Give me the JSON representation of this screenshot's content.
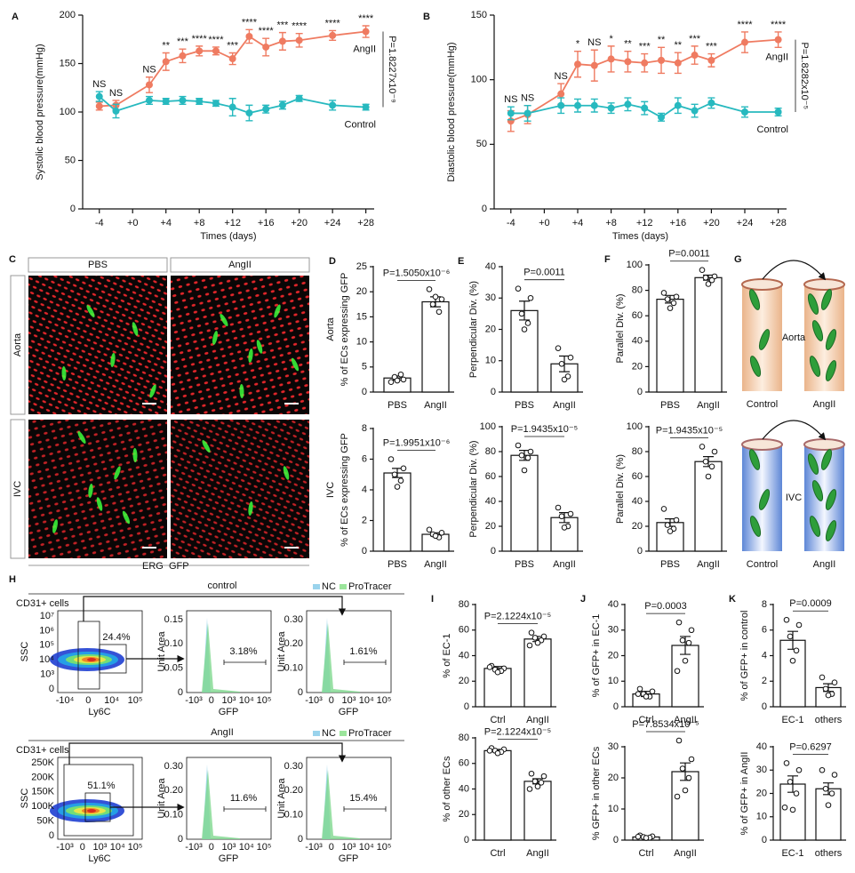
{
  "chart_data": [
    {
      "type": "line",
      "panel": "A",
      "ylabel": "Systolic blood pressure(mmHg)",
      "xlabel": "Times (days)",
      "x": [
        -4,
        -2,
        2,
        4,
        6,
        8,
        10,
        12,
        14,
        16,
        18,
        20,
        24,
        28
      ],
      "xlim": [
        -6,
        29
      ],
      "xticks": [
        -4,
        {
          "value": 0,
          "label": "+0"
        },
        {
          "value": 4,
          "label": "+4"
        },
        {
          "value": 8,
          "label": "+8"
        },
        {
          "value": 12,
          "label": "+12"
        },
        {
          "value": 16,
          "label": "+16"
        },
        {
          "value": 20,
          "label": "+20"
        },
        {
          "value": 24,
          "label": "+24"
        },
        {
          "value": 28,
          "label": "+28"
        }
      ],
      "ylim": [
        0,
        200
      ],
      "yticks": [
        0,
        50,
        100,
        150,
        200
      ],
      "series": [
        {
          "name": "AngII",
          "color": "#ef7b61",
          "values": [
            106,
            107,
            128,
            152,
            158,
            163,
            163,
            155,
            178,
            167,
            173,
            174,
            179,
            183
          ],
          "errors": [
            4,
            5,
            8,
            9,
            7,
            5,
            4,
            6,
            7,
            9,
            9,
            7,
            5,
            6
          ]
        },
        {
          "name": "Control",
          "color": "#27b9bf",
          "values": [
            116,
            101,
            112,
            111,
            112,
            111,
            109,
            105,
            99,
            103,
            107,
            114,
            107,
            105
          ],
          "errors": [
            5,
            7,
            4,
            3,
            4,
            3,
            3,
            9,
            8,
            4,
            4,
            3,
            5,
            3
          ]
        }
      ],
      "significance": [
        "NS",
        "NS",
        "NS",
        "**",
        "***",
        "****",
        "****",
        "***",
        "****",
        "****",
        "***",
        "****",
        "****",
        "****"
      ],
      "p_value": "P=1.8227x10⁻⁹"
    },
    {
      "type": "line",
      "panel": "B",
      "ylabel": "Diastolic blood pressure(mmHg)",
      "xlabel": "Times (days)",
      "x": [
        -4,
        -2,
        2,
        4,
        6,
        8,
        10,
        12,
        14,
        16,
        18,
        20,
        24,
        28
      ],
      "xlim": [
        -6,
        29
      ],
      "xticks": [
        -4,
        {
          "value": 0,
          "label": "+0"
        },
        {
          "value": 4,
          "label": "+4"
        },
        {
          "value": 8,
          "label": "+8"
        },
        {
          "value": 12,
          "label": "+12"
        },
        {
          "value": 16,
          "label": "+16"
        },
        {
          "value": 20,
          "label": "+20"
        },
        {
          "value": 24,
          "label": "+24"
        },
        {
          "value": 28,
          "label": "+28"
        }
      ],
      "ylim": [
        0,
        150
      ],
      "yticks": [
        0,
        50,
        100,
        150
      ],
      "series": [
        {
          "name": "AngII",
          "color": "#ef7b61",
          "values": [
            68,
            73,
            89,
            112,
            111,
            116,
            114,
            113,
            115,
            113,
            119,
            115,
            129,
            131
          ],
          "errors": [
            8,
            7,
            8,
            10,
            12,
            10,
            8,
            7,
            10,
            8,
            7,
            5,
            8,
            6
          ]
        },
        {
          "name": "Control",
          "color": "#27b9bf",
          "values": [
            74,
            74,
            80,
            80,
            80,
            78,
            81,
            78,
            71,
            80,
            76,
            82,
            75,
            75
          ],
          "errors": [
            5,
            6,
            6,
            5,
            5,
            4,
            5,
            5,
            3,
            6,
            5,
            4,
            4,
            3
          ]
        }
      ],
      "significance": [
        "NS",
        "NS",
        "NS",
        "*",
        "NS",
        "*",
        "**",
        "***",
        "**",
        "**",
        "***",
        "***",
        "****",
        "****"
      ],
      "p_value": "P=1.8282x10⁻⁵"
    },
    {
      "type": "bar",
      "panel": "D",
      "row_label": "Aorta",
      "ylabel": "% of ECs expressing GFP",
      "color": "#ffffff",
      "categories": [
        "PBS",
        "AngII"
      ],
      "values": [
        2.8,
        18
      ],
      "errors": [
        0.4,
        1
      ],
      "points": [
        [
          2.0,
          2.5,
          3.0,
          3.5,
          2.3
        ],
        [
          20.5,
          18.5,
          17.5,
          16,
          19
        ]
      ],
      "ylim": [
        0,
        25
      ],
      "yticks": [
        0,
        5,
        10,
        15,
        20,
        25
      ],
      "p_value": "P=1.5050x10⁻⁶"
    },
    {
      "type": "bar",
      "row_label": "IVC",
      "ylabel": "% of ECs expressing GFP",
      "color": "#ffffff",
      "categories": [
        "PBS",
        "AngII"
      ],
      "values": [
        5.1,
        1.1
      ],
      "errors": [
        0.3,
        0.1
      ],
      "points": [
        [
          6.0,
          5.4,
          5.0,
          4.6,
          4.2
        ],
        [
          1.4,
          1.2,
          1.1,
          0.9,
          1.0
        ]
      ],
      "ylim": [
        0,
        8
      ],
      "yticks": [
        0,
        2,
        4,
        6,
        8
      ],
      "p_value": "P=1.9951x10⁻⁶"
    },
    {
      "type": "bar",
      "panel": "E",
      "ylabel": "Perpendicular Div. (%)",
      "color": "#ffffff",
      "categories": [
        "PBS",
        "AngII"
      ],
      "values": [
        26,
        9
      ],
      "errors": [
        3,
        2.5
      ],
      "points": [
        [
          33,
          30,
          25,
          22,
          20
        ],
        [
          14,
          11,
          9,
          5,
          4
        ]
      ],
      "ylim": [
        0,
        40
      ],
      "yticks": [
        0,
        10,
        20,
        30,
        40
      ],
      "p_value": "P=0.0011"
    },
    {
      "type": "bar",
      "ylabel": "Perpendicular Div. (%)",
      "color": "#ffffff",
      "categories": [
        "PBS",
        "AngII"
      ],
      "values": [
        77,
        27
      ],
      "errors": [
        4,
        4
      ],
      "points": [
        [
          85,
          80,
          77,
          75,
          65
        ],
        [
          35,
          30,
          28,
          20,
          19
        ]
      ],
      "ylim": [
        0,
        100
      ],
      "yticks": [
        0,
        20,
        40,
        60,
        80,
        100
      ],
      "p_value": "P=1.9435x10⁻⁵"
    },
    {
      "type": "bar",
      "panel": "F",
      "ylabel": "Parallel Div. (%)",
      "color": "#ffffff",
      "categories": [
        "PBS",
        "AngII"
      ],
      "values": [
        73,
        90
      ],
      "errors": [
        3,
        2
      ],
      "points": [
        [
          78,
          75,
          73,
          70,
          66
        ],
        [
          96,
          91,
          90,
          88,
          85
        ]
      ],
      "ylim": [
        0,
        100
      ],
      "yticks": [
        0,
        20,
        40,
        60,
        80,
        100
      ],
      "p_value": "P=0.0011"
    },
    {
      "type": "bar",
      "ylabel": "Parallel Div. (%)",
      "color": "#ffffff",
      "categories": [
        "PBS",
        "AngII"
      ],
      "values": [
        23,
        72
      ],
      "errors": [
        3,
        4
      ],
      "points": [
        [
          34,
          25,
          21,
          18,
          16
        ],
        [
          84,
          80,
          72,
          68,
          60
        ]
      ],
      "ylim": [
        0,
        100
      ],
      "yticks": [
        0,
        20,
        40,
        60,
        80,
        100
      ],
      "p_value": "P=1.9435x10⁻⁵"
    },
    {
      "type": "bar",
      "panel": "I",
      "ylabel": "% of EC-1",
      "color": "#ffffff",
      "categories": [
        "Ctrl",
        "AngII"
      ],
      "values": [
        30,
        53
      ],
      "errors": [
        1.5,
        2
      ],
      "points": [
        [
          32,
          30,
          29,
          28,
          27,
          31
        ],
        [
          58,
          55,
          54,
          52,
          50,
          48
        ]
      ],
      "ylim": [
        0,
        80
      ],
      "yticks": [
        0,
        20,
        40,
        60,
        80
      ],
      "p_value": "P=2.1224x10⁻⁵"
    },
    {
      "type": "bar",
      "ylabel": "% of other ECs",
      "color": "#ffffff",
      "categories": [
        "Ctrl",
        "AngII"
      ],
      "values": [
        70,
        46
      ],
      "errors": [
        1,
        2
      ],
      "points": [
        [
          72,
          71,
          70,
          69,
          68,
          70
        ],
        [
          52,
          50,
          46,
          45,
          42,
          40
        ]
      ],
      "ylim": [
        0,
        80
      ],
      "yticks": [
        0,
        20,
        40,
        60,
        80
      ],
      "p_value": "P=2.1224x10⁻⁵"
    },
    {
      "type": "bar",
      "panel": "J",
      "ylabel": "% of GFP+ in EC-1",
      "color": "#ffffff",
      "categories": [
        "Ctrl",
        "AngII"
      ],
      "values": [
        5,
        24
      ],
      "errors": [
        1,
        3.5
      ],
      "points": [
        [
          7,
          6,
          5,
          4,
          4,
          5
        ],
        [
          33,
          30,
          26,
          25,
          18,
          14
        ]
      ],
      "ylim": [
        0,
        40
      ],
      "yticks": [
        0,
        10,
        20,
        30,
        40
      ],
      "p_value": "P=0.0003"
    },
    {
      "type": "bar",
      "ylabel": "% GFP+ in other ECs",
      "color": "#ffffff",
      "categories": [
        "Ctrl",
        "AngII"
      ],
      "values": [
        1,
        22
      ],
      "errors": [
        0.2,
        2.8
      ],
      "points": [
        [
          1.5,
          1.2,
          1,
          0.8,
          0.7,
          1.1
        ],
        [
          32,
          26,
          23,
          20,
          16,
          14
        ]
      ],
      "ylim": [
        0,
        30
      ],
      "yticks": [
        0,
        10,
        20,
        30
      ],
      "p_value": "P=7.8534x10⁻⁵"
    },
    {
      "type": "bar",
      "panel": "K",
      "ylabel": "% of GFP+ in control",
      "color": "#ffffff",
      "categories": [
        "EC-1",
        "others"
      ],
      "values": [
        5.2,
        1.5
      ],
      "errors": [
        0.7,
        0.3
      ],
      "points": [
        [
          6.8,
          6.4,
          5.5,
          4.4,
          3.6
        ],
        [
          2.3,
          1.9,
          1.4,
          1.0,
          0.9
        ]
      ],
      "ylim": [
        0,
        8
      ],
      "yticks": [
        0,
        2,
        4,
        6,
        8
      ],
      "p_value": "P=0.0009"
    },
    {
      "type": "bar",
      "ylabel": "% of GFP+ in AngII",
      "color": "#ffffff",
      "categories": [
        "EC-1",
        "others"
      ],
      "values": [
        24,
        22
      ],
      "errors": [
        3.5,
        2.5
      ],
      "points": [
        [
          33,
          30,
          25,
          20,
          13,
          14
        ],
        [
          30,
          28,
          22,
          20,
          15
        ]
      ],
      "ylim": [
        0,
        40
      ],
      "yticks": [
        0,
        10,
        20,
        30,
        40
      ],
      "p_value": "P=0.6297"
    }
  ],
  "micrographs": {
    "panel": "C",
    "columns": [
      "PBS",
      "AngII"
    ],
    "rows": [
      "Aorta",
      "IVC"
    ],
    "stain": [
      {
        "name": "ERG",
        "color": "#d7191c"
      },
      {
        "name": "GFP",
        "color": "#22b14c"
      }
    ]
  },
  "diagram": {
    "panel": "G",
    "top": {
      "tissue": "Aorta",
      "left": "Control",
      "right": "AngII"
    },
    "bottom": {
      "tissue": "IVC",
      "left": "Control",
      "right": "AngII"
    }
  },
  "flow": {
    "panel": "H",
    "legend": [
      "NC",
      "ProTracer"
    ],
    "rows": [
      {
        "title": "control",
        "population": "CD31+ cells",
        "scatter": {
          "ylabel": "SSC",
          "xlabel": "Ly6C",
          "yticks": [
            "10⁷",
            "10⁶",
            "10⁵",
            "10⁴",
            "10³",
            "0"
          ],
          "xticks": [
            "-10⁴",
            "0",
            "10⁴",
            "10⁵"
          ],
          "gate": "24.4%"
        },
        "histograms": [
          {
            "ylabel": "Unit Area",
            "xlabel": "GFP",
            "yticks": [
              "0",
              "0.05",
              "0.10",
              "0.15"
            ],
            "xticks": [
              "-10³",
              "0",
              "10³",
              "10⁴",
              "10⁵"
            ],
            "gate": "3.18%"
          },
          {
            "ylabel": "Unit Area",
            "xlabel": "GFP",
            "yticks": [
              "0",
              "0.10",
              "0.20",
              "0.30"
            ],
            "xticks": [
              "-10³",
              "0",
              "10³",
              "10⁴",
              "10⁵"
            ],
            "gate": "1.61%"
          }
        ]
      },
      {
        "title": "AngII",
        "population": "CD31+ cells",
        "scatter": {
          "ylabel": "SSC",
          "xlabel": "Ly6C",
          "yticks": [
            "250K",
            "200K",
            "150K",
            "100K",
            "50K",
            "0"
          ],
          "xticks": [
            "-10³",
            "0",
            "10³",
            "10⁴",
            "10⁵"
          ],
          "gate": "51.1%"
        },
        "histograms": [
          {
            "ylabel": "Unit Area",
            "xlabel": "GFP",
            "yticks": [
              "0",
              "0.10",
              "0.20",
              "0.30"
            ],
            "xticks": [
              "-10³",
              "0",
              "10³",
              "10⁴",
              "10⁵"
            ],
            "gate": "11.6%"
          },
          {
            "ylabel": "Unit Area",
            "xlabel": "GFP",
            "yticks": [
              "0",
              "0.10",
              "0.20",
              "0.30"
            ],
            "xticks": [
              "-10³",
              "0",
              "10³",
              "10⁴",
              "10⁵"
            ],
            "gate": "15.4%"
          }
        ]
      }
    ]
  }
}
